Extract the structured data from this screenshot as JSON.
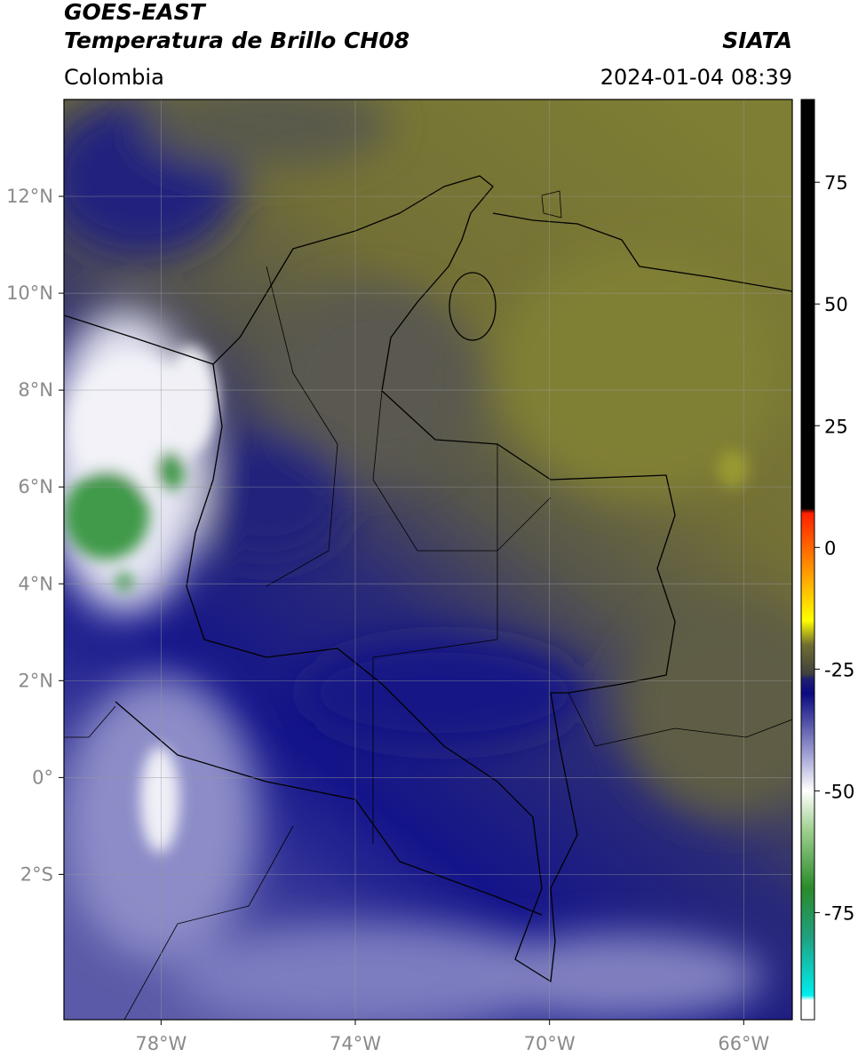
{
  "map": {
    "title": "GOES-EAST",
    "subtitle": "Temperatura de Brillo CH08",
    "source": "SIATA",
    "region": "Colombia",
    "datetime": "2024-01-04 08:39",
    "xlim": [
      -80,
      -65
    ],
    "ylim": [
      -5,
      14
    ],
    "xticks": [
      {
        "value": -78,
        "label": "78°W"
      },
      {
        "value": -74,
        "label": "74°W"
      },
      {
        "value": -70,
        "label": "70°W"
      },
      {
        "value": -66,
        "label": "66°W"
      }
    ],
    "yticks": [
      {
        "value": 12,
        "label": "12°N"
      },
      {
        "value": 10,
        "label": "10°N"
      },
      {
        "value": 8,
        "label": "8°N"
      },
      {
        "value": 6,
        "label": "6°N"
      },
      {
        "value": 4,
        "label": "4°N"
      },
      {
        "value": 2,
        "label": "2°N"
      },
      {
        "value": 0,
        "label": "0°"
      },
      {
        "value": -2,
        "label": "2°S"
      }
    ],
    "grid": true,
    "colorbar": {
      "lim": [
        -97,
        92
      ],
      "ticks": [
        75,
        50,
        25,
        0,
        -25,
        -50,
        -75
      ],
      "stops": [
        [
          -97,
          "#ffffff"
        ],
        [
          -93,
          "#ffffff"
        ],
        [
          -92,
          "#00eeee"
        ],
        [
          -80,
          "#20a080"
        ],
        [
          -70,
          "#2a8a2a"
        ],
        [
          -58,
          "#a0d090"
        ],
        [
          -50,
          "#ffffff"
        ],
        [
          -42,
          "#9a9ad0"
        ],
        [
          -30,
          "#0a0a80"
        ],
        [
          -27,
          "#202070"
        ],
        [
          -26,
          "#404040"
        ],
        [
          -20,
          "#706e30"
        ],
        [
          -15,
          "#ffff00"
        ],
        [
          -5,
          "#ff9900"
        ],
        [
          7,
          "#ff2000"
        ],
        [
          8,
          "#000000"
        ],
        [
          92,
          "#000000"
        ]
      ]
    }
  }
}
